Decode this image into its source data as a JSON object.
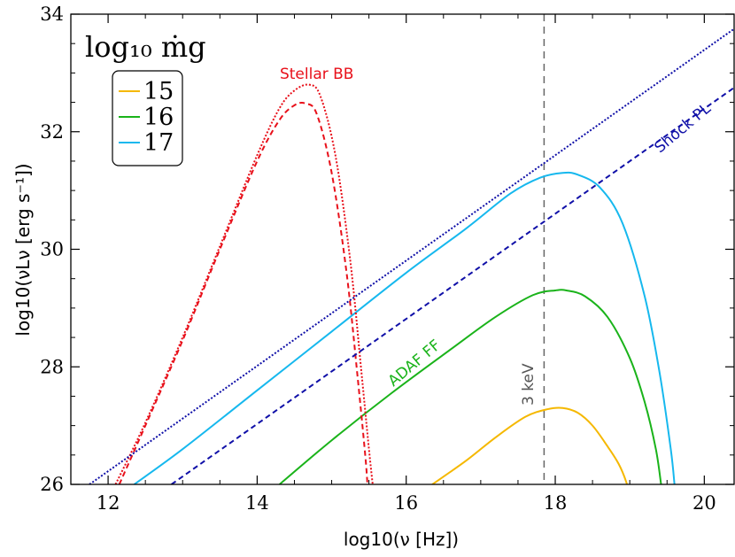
{
  "chart_data": {
    "type": "line",
    "xlabel": "log10(ν [Hz])",
    "ylabel": "log10(νLν [erg s⁻¹])",
    "xlim": [
      11.5,
      20.4
    ],
    "ylim": [
      26,
      34
    ],
    "xticks": [
      12,
      14,
      16,
      18,
      20
    ],
    "yticks": [
      26,
      28,
      30,
      32,
      34
    ],
    "legend": {
      "title": "log₁₀ ṁg",
      "placement": "top-left",
      "entries": [
        {
          "label": "15",
          "color": "#f5b800"
        },
        {
          "label": "16",
          "color": "#1ab31a"
        },
        {
          "label": "17",
          "color": "#16b8ee"
        }
      ]
    },
    "series": [
      {
        "label_key": "15",
        "color": "#f5b800",
        "dash": "solid",
        "x": [
          16.35,
          16.8,
          17.2,
          17.6,
          17.9,
          18.1,
          18.3,
          18.5,
          18.7,
          18.85,
          18.95,
          19.05
        ],
        "y": [
          26.0,
          26.4,
          26.8,
          27.15,
          27.28,
          27.3,
          27.22,
          27.0,
          26.65,
          26.35,
          26.05,
          25.6
        ]
      },
      {
        "label_key": "16",
        "color": "#1ab31a",
        "dash": "solid",
        "x": [
          14.3,
          15.0,
          15.8,
          16.6,
          17.2,
          17.7,
          18.0,
          18.15,
          18.4,
          18.7,
          19.0,
          19.2,
          19.35,
          19.42
        ],
        "y": [
          26.0,
          26.75,
          27.55,
          28.3,
          28.85,
          29.22,
          29.3,
          29.3,
          29.2,
          28.85,
          28.15,
          27.4,
          26.6,
          26.0
        ]
      },
      {
        "label_key": "17",
        "color": "#16b8ee",
        "dash": "solid",
        "x": [
          12.35,
          13.0,
          14.0,
          15.0,
          16.0,
          16.8,
          17.4,
          17.8,
          18.1,
          18.3,
          18.6,
          18.9,
          19.2,
          19.4,
          19.55,
          19.6
        ],
        "y": [
          26.0,
          26.6,
          27.6,
          28.6,
          29.6,
          30.35,
          30.95,
          31.22,
          31.3,
          31.27,
          31.05,
          30.45,
          29.2,
          27.9,
          26.6,
          26.0
        ]
      },
      {
        "label_key": "Stellar BB (dashed)",
        "color": "#e8101a",
        "dash": "6,4",
        "x": [
          12.15,
          12.5,
          13.0,
          13.5,
          14.0,
          14.3,
          14.5,
          14.65,
          14.8,
          15.0,
          15.2,
          15.35,
          15.45,
          15.48
        ],
        "y": [
          26.0,
          27.0,
          28.45,
          30.0,
          31.5,
          32.2,
          32.45,
          32.48,
          32.3,
          31.3,
          29.6,
          27.8,
          26.5,
          26.0
        ]
      },
      {
        "label_key": "Stellar BB (dotted)",
        "color": "#e8101a",
        "dash": "2,2",
        "x": [
          12.1,
          12.5,
          13.0,
          13.5,
          14.0,
          14.3,
          14.5,
          14.7,
          14.85,
          15.05,
          15.25,
          15.4,
          15.5,
          15.55
        ],
        "y": [
          26.0,
          27.05,
          28.5,
          30.05,
          31.6,
          32.4,
          32.7,
          32.8,
          32.6,
          31.6,
          29.8,
          27.9,
          26.6,
          26.0
        ]
      },
      {
        "label_key": "Shock PL (dotted)",
        "color": "#1010a8",
        "dash": "2,2",
        "x": [
          11.75,
          20.4
        ],
        "y": [
          26.0,
          33.75
        ]
      },
      {
        "label_key": "Shock PL (dashed)",
        "color": "#1010a8",
        "dash": "6,4",
        "x": [
          12.85,
          20.4
        ],
        "y": [
          26.0,
          32.75
        ]
      }
    ],
    "vline": {
      "x": 17.85,
      "color": "#666666",
      "dash": "8,6"
    },
    "annotations": [
      {
        "text": "Stellar BB",
        "color": "#e8101a",
        "x": 14.8,
        "y": 32.9,
        "rotate": 0
      },
      {
        "text": "Shock PL",
        "color": "#1010a8",
        "x": 19.75,
        "y": 32.0,
        "rotate": -40
      },
      {
        "text": "ADAF FF",
        "color": "#1ab31a",
        "x": 16.15,
        "y": 28.0,
        "rotate": -40
      },
      {
        "text": "3 keV",
        "color": "#555555",
        "x": 17.7,
        "y": 27.7,
        "rotate": -90
      }
    ]
  }
}
